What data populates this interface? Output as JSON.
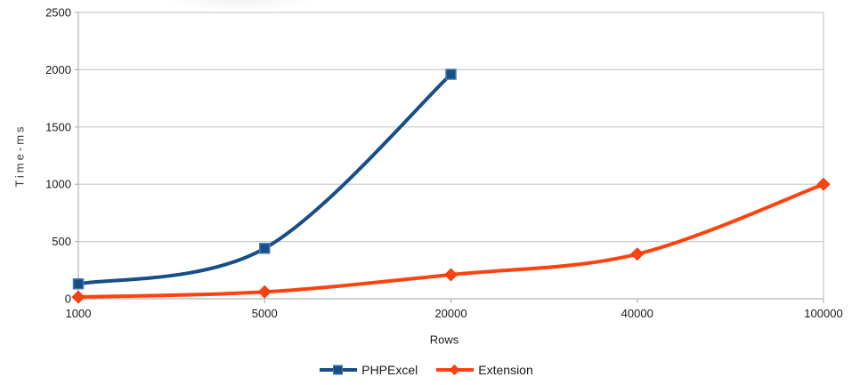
{
  "chart_data": {
    "type": "line",
    "title": "",
    "xlabel": "Rows",
    "ylabel": "Time-ms",
    "categories": [
      "1000",
      "5000",
      "20000",
      "40000",
      "100000"
    ],
    "series": [
      {
        "name": "PHPExcel",
        "values": [
          130,
          440,
          1960,
          null,
          null
        ],
        "color": "#174e88",
        "marker": "square",
        "marker_border": "#4679ad"
      },
      {
        "name": "Extension",
        "values": [
          15,
          60,
          210,
          390,
          1000
        ],
        "color": "#ff420e",
        "marker": "diamond",
        "marker_border": "#e63c0a"
      }
    ],
    "ylim": [
      0,
      2500
    ],
    "yticks": [
      0,
      500,
      1000,
      1500,
      2000,
      2500
    ],
    "grid": "horizontal",
    "line_smoothing": true,
    "legend_position": "bottom-center",
    "colors": {
      "background": "#ffffff",
      "gridline": "#c9c9c9",
      "axis": "#b3b3b3",
      "tick_text": "#1a1a1a"
    }
  }
}
